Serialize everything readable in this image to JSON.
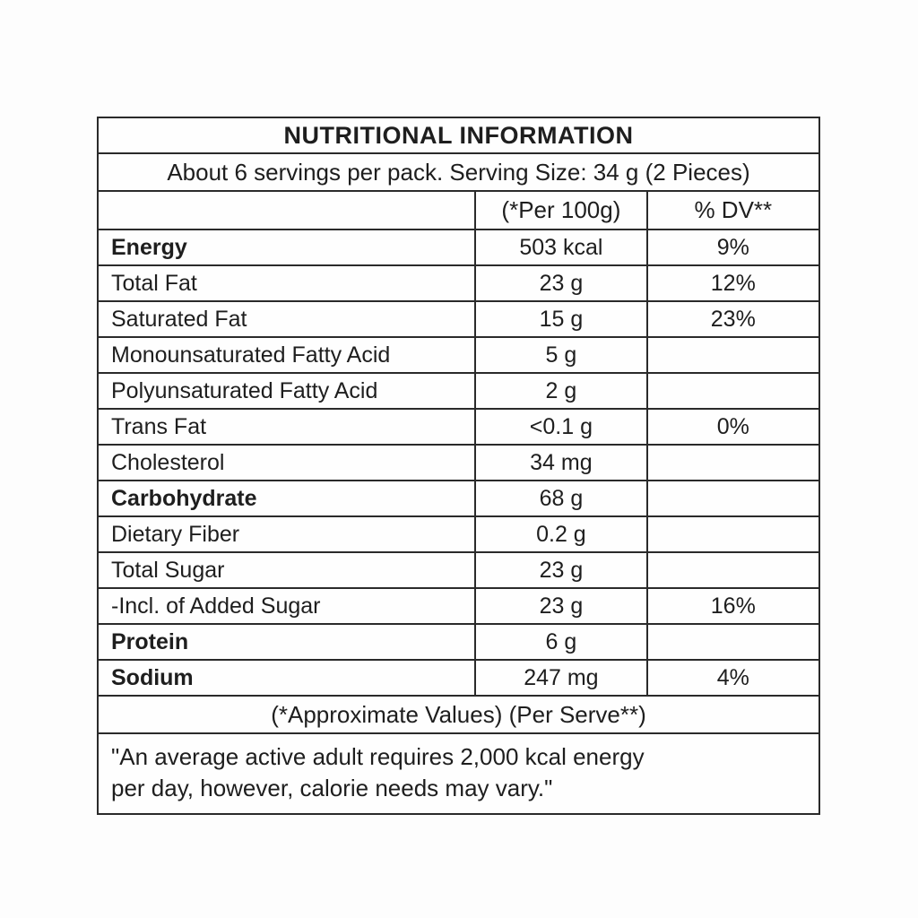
{
  "table": {
    "title": "NUTRITIONAL INFORMATION",
    "serving_line": "About 6 servings per pack.  Serving Size: 34 g (2 Pieces)",
    "columns": [
      "",
      "(*Per 100g)",
      "% DV**"
    ],
    "rows": [
      {
        "name": "Energy",
        "value": "503 kcal",
        "dv": "9%"
      },
      {
        "name": "Total Fat",
        "value": "23 g",
        "dv": "12%"
      },
      {
        "name": "Saturated Fat",
        "value": "15 g",
        "dv": "23%"
      },
      {
        "name": "Monounsaturated Fatty Acid",
        "value": "5 g",
        "dv": ""
      },
      {
        "name": "Polyunsaturated Fatty Acid",
        "value": "2 g",
        "dv": ""
      },
      {
        "name": "Trans Fat",
        "value": "<0.1 g",
        "dv": "0%"
      },
      {
        "name": "Cholesterol",
        "value": "34 mg",
        "dv": ""
      },
      {
        "name": "Carbohydrate",
        "value": "68 g",
        "dv": ""
      },
      {
        "name": "Dietary Fiber",
        "value": "0.2 g",
        "dv": ""
      },
      {
        "name": "Total Sugar",
        "value": "23 g",
        "dv": ""
      },
      {
        "name": "-Incl. of Added Sugar",
        "value": "23 g",
        "dv": "16%"
      },
      {
        "name": "Protein",
        "value": "6 g",
        "dv": ""
      },
      {
        "name": "Sodium",
        "value": "247 mg",
        "dv": "4%"
      }
    ],
    "approx_line": "(*Approximate Values) (Per Serve**)",
    "footnote": [
      "\"An average active adult requires 2,000 kcal energy",
      "per day, however, calorie needs may vary.\""
    ],
    "colors": {
      "border": "#2a2a2a",
      "text": "#1e1e1e",
      "background": "#fefefe"
    }
  }
}
